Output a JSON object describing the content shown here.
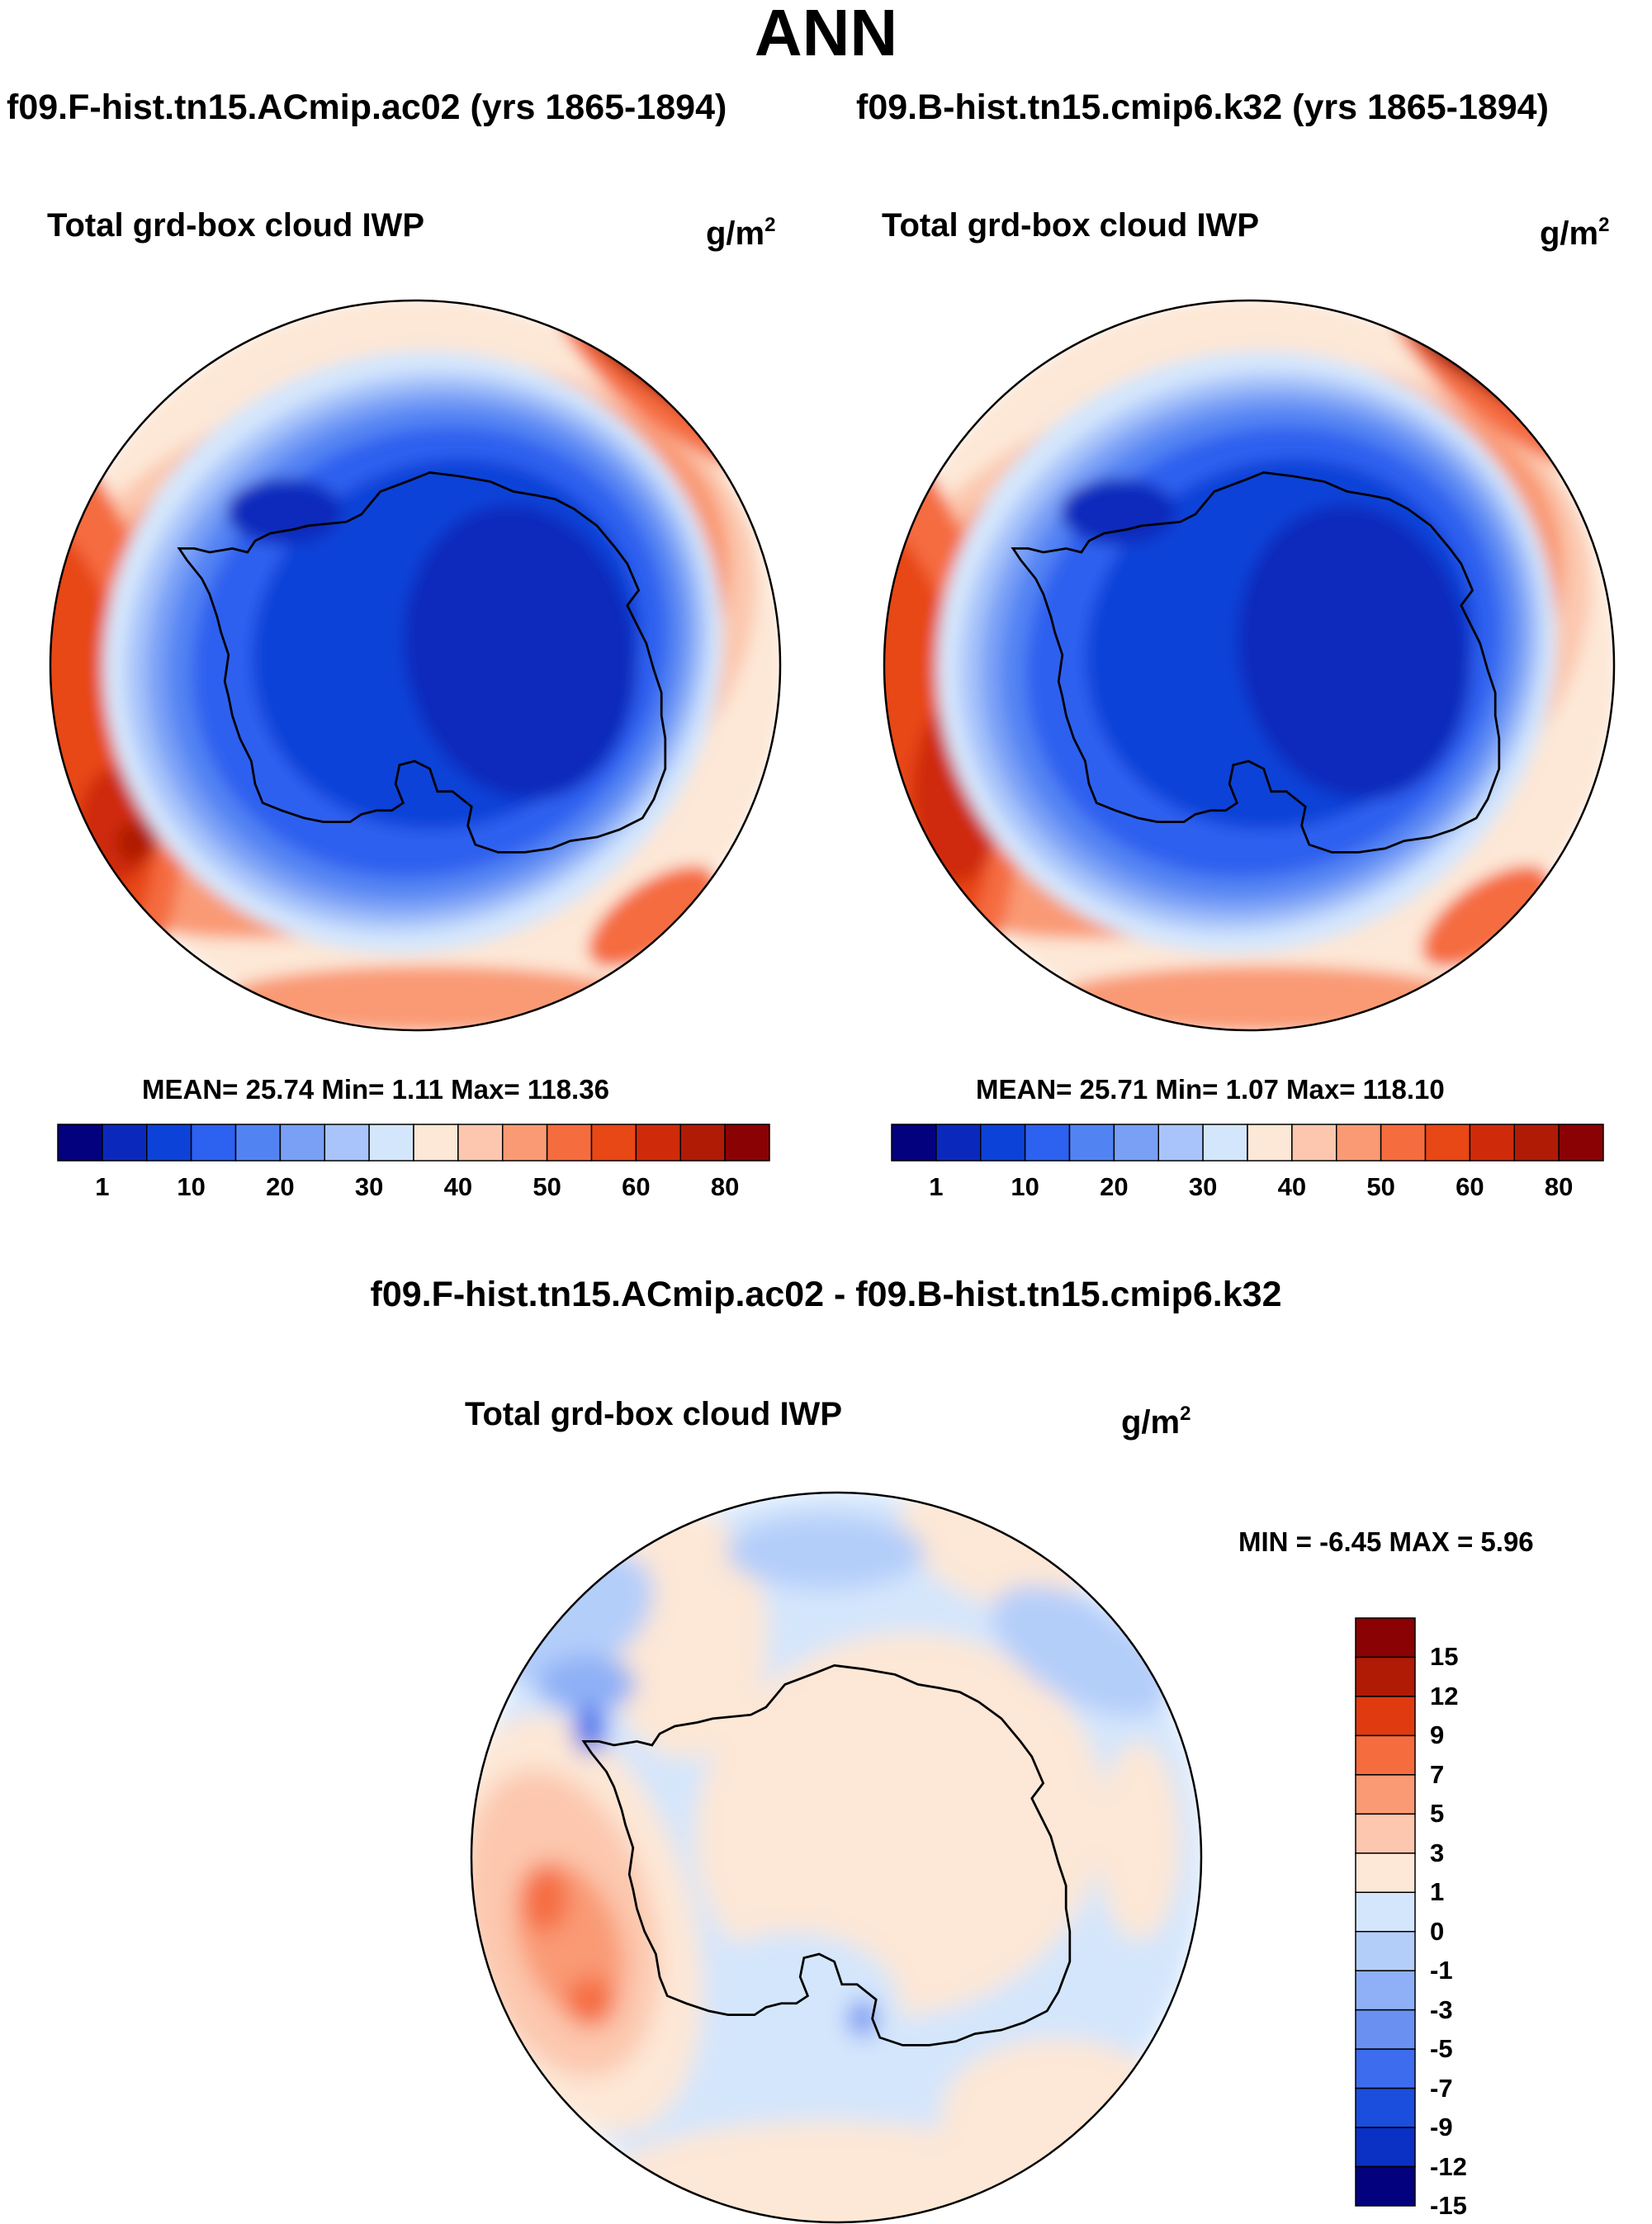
{
  "main_title": "ANN",
  "panels": [
    {
      "run_title": "f09.F-hist.tn15.ACmip.ac02 (yrs 1865-1894)",
      "var_title": "Total grd-box cloud IWP",
      "units_base": "g/m",
      "units_exp": "2",
      "stats": "MEAN=  25.74  Min=    1.11  Max= 118.36"
    },
    {
      "run_title": "f09.B-hist.tn15.cmip6.k32 (yrs 1865-1894)",
      "var_title": "Total grd-box cloud IWP",
      "units_base": "g/m",
      "units_exp": "2",
      "stats": "MEAN=  25.71  Min=    1.07  Max= 118.10"
    }
  ],
  "diff_panel": {
    "title": "f09.F-hist.tn15.ACmip.ac02 - f09.B-hist.tn15.cmip6.k32",
    "var_title": "Total grd-box cloud IWP",
    "units_base": "g/m",
    "units_exp": "2",
    "stats": "MIN =  -6.45 MAX =    5.96"
  },
  "chart_data": [
    {
      "type": "heatmap",
      "projection": "south polar stereographic",
      "title": "Total grd-box cloud IWP",
      "units": "g/m^2",
      "mean": 25.74,
      "min": 1.11,
      "max": 118.36,
      "colorbar_ticks": [
        "1",
        "10",
        "20",
        "30",
        "40",
        "50",
        "60",
        "80"
      ],
      "colors": [
        "#03017e",
        "#0a29bc",
        "#0d42d8",
        "#2d61ef",
        "#5283f3",
        "#7aa0f6",
        "#a8c4fa",
        "#d4e6fc",
        "#fde7d6",
        "#fcc7ae",
        "#f99a74",
        "#f56c3f",
        "#e84716",
        "#cf2b0a",
        "#b01b06",
        "#8a0203"
      ]
    },
    {
      "type": "heatmap",
      "projection": "south polar stereographic",
      "title": "Total grd-box cloud IWP",
      "units": "g/m^2",
      "mean": 25.71,
      "min": 1.07,
      "max": 118.1,
      "colorbar_ticks": [
        "1",
        "10",
        "20",
        "30",
        "40",
        "50",
        "60",
        "80"
      ],
      "colors": [
        "#03017e",
        "#0a29bc",
        "#0d42d8",
        "#2d61ef",
        "#5283f3",
        "#7aa0f6",
        "#a8c4fa",
        "#d4e6fc",
        "#fde7d6",
        "#fcc7ae",
        "#f99a74",
        "#f56c3f",
        "#e84716",
        "#cf2b0a",
        "#b01b06",
        "#8a0203"
      ]
    },
    {
      "type": "heatmap",
      "projection": "south polar stereographic",
      "title": "f09.F-hist.tn15.ACmip.ac02 - f09.B-hist.tn15.cmip6.k32",
      "units": "g/m^2",
      "min": -6.45,
      "max": 5.96,
      "colorbar_ticks": [
        "15",
        "12",
        "9",
        "7",
        "5",
        "3",
        "1",
        "0",
        "-1",
        "-3",
        "-5",
        "-7",
        "-9",
        "-12",
        "-15"
      ],
      "colors": [
        "#8a0203",
        "#b01b06",
        "#e03b10",
        "#f56c3f",
        "#f99a74",
        "#fcc7ae",
        "#fde7d6",
        "#d4e6fc",
        "#b4cefa",
        "#8fb0f6",
        "#6a90f2",
        "#3d6cee",
        "#1c4edd",
        "#0b30c4",
        "#03017e"
      ]
    }
  ]
}
